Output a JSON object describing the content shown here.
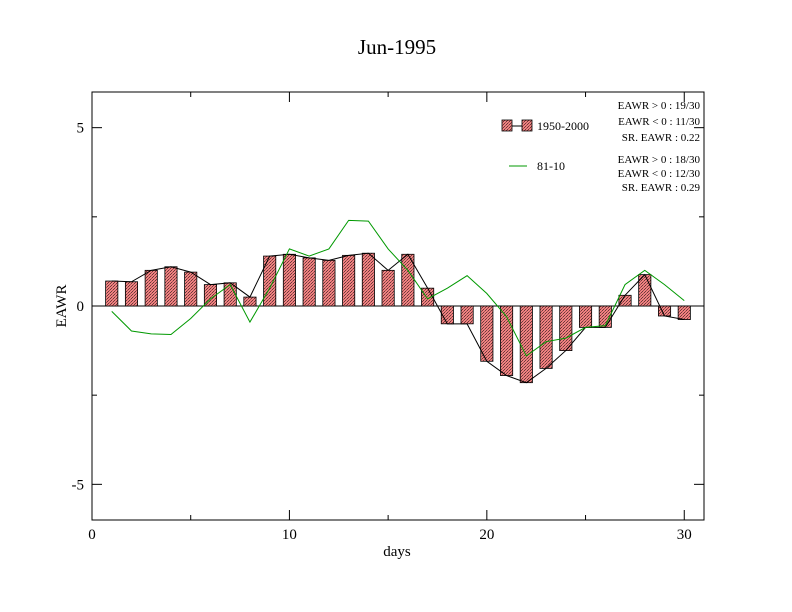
{
  "chart_data": {
    "type": "bar",
    "title": "Jun-1995",
    "xlabel": "days",
    "ylabel": "EAWR",
    "xlim": [
      0,
      31
    ],
    "ylim": [
      -6,
      6
    ],
    "x_ticks": [
      0,
      10,
      20,
      30
    ],
    "y_ticks": [
      5,
      0,
      -5
    ],
    "x_tick_labels": [
      "0",
      "10",
      "20",
      "30"
    ],
    "y_tick_labels": [
      "5",
      "0",
      "-5"
    ],
    "grid": false,
    "legend_position": "top-right",
    "x": [
      1,
      2,
      3,
      4,
      5,
      6,
      7,
      8,
      9,
      10,
      11,
      12,
      13,
      14,
      15,
      16,
      17,
      18,
      19,
      20,
      21,
      22,
      23,
      24,
      25,
      26,
      27,
      28,
      29,
      30
    ],
    "series": [
      {
        "name": "1950-2000",
        "type": "bar",
        "bar_fill": "#e06a6a",
        "line_color": "#000000",
        "values": [
          0.7,
          0.68,
          1.0,
          1.1,
          0.95,
          0.6,
          0.65,
          0.25,
          1.4,
          1.45,
          1.35,
          1.28,
          1.42,
          1.48,
          1.0,
          1.45,
          0.5,
          -0.5,
          -0.5,
          -1.55,
          -1.95,
          -2.15,
          -1.75,
          -1.25,
          -0.6,
          -0.6,
          0.3,
          0.88,
          -0.28,
          -0.38
        ]
      },
      {
        "name": "81-10",
        "type": "line",
        "line_color": "#009900",
        "values": [
          -0.15,
          -0.7,
          -0.78,
          -0.8,
          -0.35,
          0.2,
          0.6,
          -0.45,
          0.5,
          1.6,
          1.4,
          1.6,
          2.4,
          2.38,
          1.6,
          1.0,
          0.2,
          0.5,
          0.85,
          0.35,
          -0.3,
          -1.4,
          -1.0,
          -0.9,
          -0.6,
          -0.55,
          0.6,
          1.0,
          0.6,
          0.15
        ]
      }
    ],
    "stats": {
      "s1": [
        "EAWR > 0 : 19/30",
        "EAWR < 0 : 11/30",
        "SR. EAWR :  0.22"
      ],
      "s2": [
        "EAWR > 0 : 18/30",
        "EAWR < 0 : 12/30",
        "SR. EAWR :  0.29"
      ]
    }
  }
}
